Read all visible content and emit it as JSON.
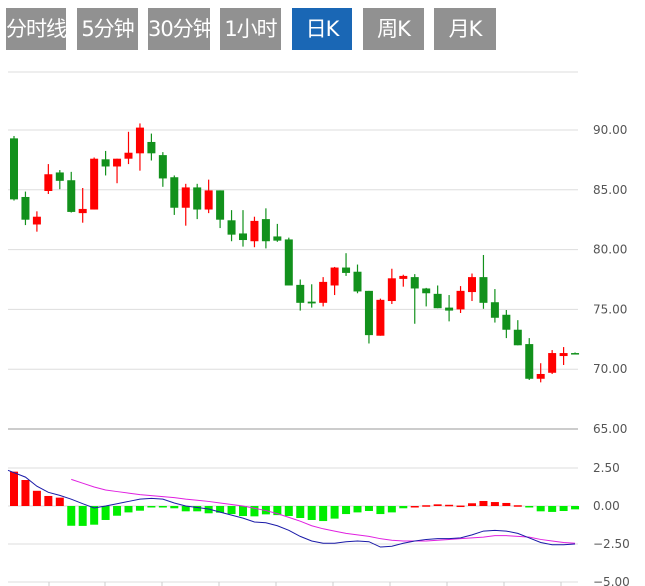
{
  "tabs": [
    {
      "label": "分时线",
      "active": false
    },
    {
      "label": "5分钟",
      "active": false
    },
    {
      "label": "30分钟",
      "active": false
    },
    {
      "label": "1小时",
      "active": false
    },
    {
      "label": "日K",
      "active": true
    },
    {
      "label": "周K",
      "active": false
    },
    {
      "label": "月K",
      "active": false
    }
  ],
  "colors": {
    "up": "#ff0000",
    "down": "#12911c",
    "macd_up": "#ff0000",
    "macd_down": "#00ee00",
    "dif": "#1a1aa8",
    "dea": "#e020e0",
    "tab_active": "#1a67b5",
    "tab": "#919191"
  },
  "chart_data": [
    {
      "type": "candlestick",
      "y_ticks": [
        "90.00",
        "85.00",
        "80.00",
        "75.00",
        "70.00",
        "65.00"
      ],
      "ylim": [
        65,
        90
      ],
      "grid": true,
      "up_color_means": "close > open",
      "ohlc": [
        [
          89.3,
          89.5,
          84.1,
          84.2
        ],
        [
          84.4,
          84.85,
          82.05,
          82.5
        ],
        [
          82.1,
          83.2,
          81.5,
          82.75
        ],
        [
          84.9,
          87.15,
          84.65,
          86.3
        ],
        [
          86.45,
          86.65,
          85.05,
          85.75
        ],
        [
          85.8,
          86.5,
          83.1,
          83.15
        ],
        [
          83.05,
          85.15,
          82.25,
          83.4
        ],
        [
          83.35,
          87.7,
          83.35,
          87.6
        ],
        [
          87.55,
          88.25,
          86.2,
          86.95
        ],
        [
          86.95,
          87.6,
          85.55,
          87.6
        ],
        [
          87.6,
          89.85,
          87.15,
          88.1
        ],
        [
          88.05,
          90.55,
          86.6,
          90.2
        ],
        [
          89.0,
          89.7,
          87.45,
          88.05
        ],
        [
          87.9,
          88.15,
          85.25,
          85.95
        ],
        [
          86.05,
          86.2,
          82.9,
          83.5
        ],
        [
          83.5,
          85.5,
          82.0,
          85.2
        ],
        [
          85.2,
          85.5,
          82.55,
          83.35
        ],
        [
          83.35,
          85.85,
          83.05,
          84.95
        ],
        [
          84.95,
          84.95,
          81.8,
          82.5
        ],
        [
          82.45,
          83.3,
          80.7,
          81.25
        ],
        [
          81.35,
          83.3,
          80.25,
          80.8
        ],
        [
          80.7,
          82.75,
          80.2,
          82.4
        ],
        [
          82.55,
          83.45,
          80.1,
          80.7
        ],
        [
          81.1,
          82.15,
          80.65,
          80.75
        ],
        [
          80.85,
          81.0,
          77.0,
          77.0
        ],
        [
          77.05,
          77.5,
          74.9,
          75.55
        ],
        [
          75.65,
          77.1,
          75.15,
          75.5
        ],
        [
          75.55,
          77.7,
          75.25,
          77.3
        ],
        [
          77.0,
          78.55,
          76.2,
          78.5
        ],
        [
          78.5,
          79.7,
          77.8,
          78.05
        ],
        [
          78.15,
          78.75,
          76.35,
          76.5
        ],
        [
          76.55,
          76.55,
          72.15,
          72.85
        ],
        [
          72.8,
          75.9,
          72.8,
          75.8
        ],
        [
          75.7,
          78.4,
          75.45,
          77.6
        ],
        [
          77.55,
          77.9,
          76.9,
          77.8
        ],
        [
          77.7,
          77.95,
          73.8,
          76.75
        ],
        [
          76.75,
          76.8,
          75.25,
          76.35
        ],
        [
          76.3,
          77.0,
          75.1,
          75.1
        ],
        [
          75.15,
          76.2,
          74.0,
          74.9
        ],
        [
          75.0,
          76.95,
          74.7,
          76.55
        ],
        [
          76.45,
          78.0,
          75.7,
          77.7
        ],
        [
          77.7,
          79.55,
          75.05,
          75.55
        ],
        [
          75.6,
          76.7,
          73.9,
          74.3
        ],
        [
          74.55,
          74.95,
          72.6,
          73.3
        ],
        [
          73.3,
          74.1,
          72.0,
          72.0
        ],
        [
          72.1,
          72.6,
          69.1,
          69.2
        ],
        [
          69.2,
          70.5,
          68.9,
          69.6
        ],
        [
          69.7,
          71.6,
          69.6,
          71.35
        ],
        [
          71.1,
          71.85,
          70.35,
          71.35
        ],
        [
          71.35,
          71.4,
          71.25,
          71.25
        ]
      ]
    },
    {
      "type": "bar+line",
      "y_ticks": [
        "2.50",
        "0.00",
        "−2.50",
        "−5.00"
      ],
      "ylim": [
        -5,
        2.5
      ],
      "grid": true,
      "macd": [
        2.26,
        1.71,
        1.0,
        0.66,
        0.55,
        -1.3,
        -1.31,
        -1.23,
        -0.92,
        -0.64,
        -0.42,
        -0.31,
        -0.05,
        -0.05,
        -0.15,
        -0.35,
        -0.35,
        -0.48,
        -0.44,
        -0.53,
        -0.66,
        -0.68,
        -0.55,
        -0.6,
        -0.66,
        -0.79,
        -0.92,
        -0.99,
        -0.83,
        -0.53,
        -0.42,
        -0.33,
        -0.53,
        -0.42,
        -0.15,
        0,
        0.05,
        0.11,
        0.08,
        0.03,
        0.18,
        0.33,
        0.26,
        0.2,
        0.05,
        -0.05,
        -0.35,
        -0.39,
        -0.33,
        -0.22
      ],
      "dif": [
        2.35,
        1.9,
        1.3,
        0.9,
        0.7,
        0.45,
        0.15,
        -0.13,
        0.0,
        0.15,
        0.3,
        0.45,
        0.5,
        0.45,
        0.2,
        0.0,
        -0.1,
        -0.2,
        -0.4,
        -0.6,
        -0.8,
        -1.05,
        -1.1,
        -1.3,
        -1.6,
        -2.0,
        -2.3,
        -2.45,
        -2.45,
        -2.35,
        -2.3,
        -2.35,
        -2.7,
        -2.65,
        -2.45,
        -2.3,
        -2.2,
        -2.15,
        -2.15,
        -2.1,
        -1.9,
        -1.65,
        -1.6,
        -1.65,
        -1.8,
        -2.1,
        -2.4,
        -2.55,
        -2.55,
        -2.5
      ],
      "dea": [
        null,
        null,
        null,
        null,
        null,
        1.75,
        1.5,
        1.25,
        1.05,
        0.95,
        0.85,
        0.75,
        0.68,
        0.62,
        0.55,
        0.45,
        0.38,
        0.3,
        0.2,
        0.1,
        0.0,
        -0.15,
        -0.3,
        -0.5,
        -0.75,
        -1.0,
        -1.3,
        -1.5,
        -1.65,
        -1.8,
        -1.9,
        -2.0,
        -2.15,
        -2.25,
        -2.3,
        -2.3,
        -2.3,
        -2.25,
        -2.2,
        -2.15,
        -2.1,
        -2.05,
        -1.95,
        -1.95,
        -2.0,
        -2.05,
        -2.2,
        -2.3,
        -2.4,
        -2.45
      ]
    }
  ]
}
